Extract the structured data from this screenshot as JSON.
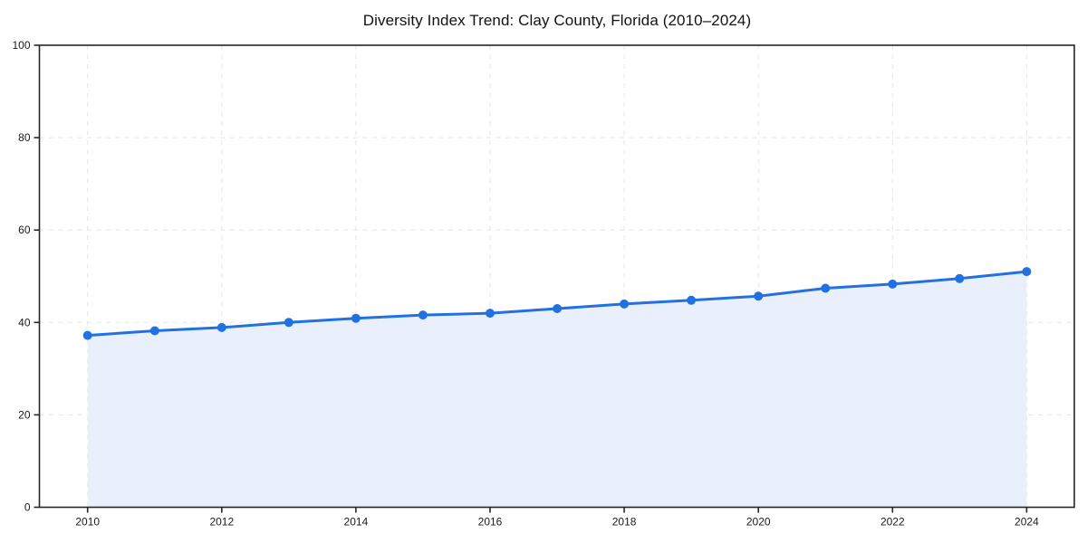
{
  "page": {
    "background_color": "#ffffff"
  },
  "chart_data": {
    "type": "line",
    "title": "Diversity Index Trend: Clay County, Florida (2010–2024)",
    "x": [
      2010,
      2011,
      2012,
      2013,
      2014,
      2015,
      2016,
      2017,
      2018,
      2019,
      2020,
      2021,
      2022,
      2023,
      2024
    ],
    "series": [
      {
        "name": "Diversity Index",
        "values": [
          37.2,
          38.2,
          38.9,
          40.0,
          40.9,
          41.6,
          42.0,
          43.0,
          44.0,
          44.8,
          45.7,
          47.4,
          48.3,
          49.5,
          51.0
        ]
      }
    ],
    "xlabel": "",
    "ylabel": "",
    "ylim": [
      0,
      100
    ],
    "yticks": [
      0,
      20,
      40,
      60,
      80,
      100
    ],
    "xticks": [
      2010,
      2012,
      2014,
      2016,
      2018,
      2020,
      2022,
      2024
    ],
    "grid": "dashed",
    "legend_position": "none",
    "area_fill": true,
    "marker": "circle",
    "colors": {
      "line": "#2271e3",
      "marker": "#2271e3",
      "area": "#e9f0fc",
      "grid": "#e6e6e6",
      "axis": "#262626",
      "title_text": "#111111",
      "tick_text": "#1a1a1a"
    }
  }
}
